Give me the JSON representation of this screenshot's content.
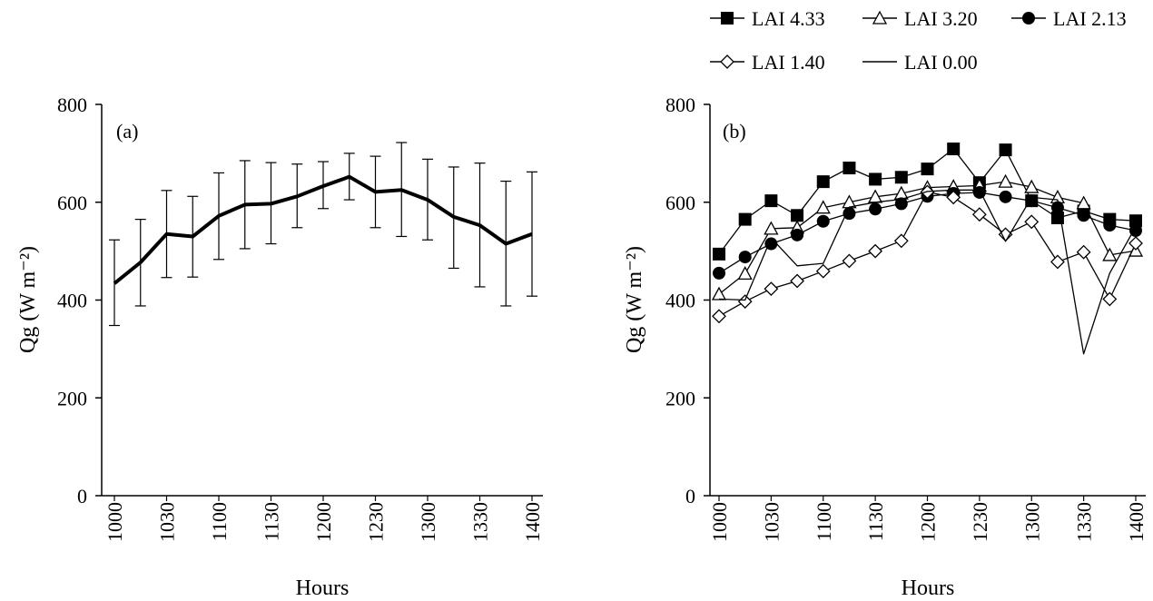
{
  "chart_data": [
    {
      "type": "line",
      "panel_label": "(a)",
      "xlabel": "Hours",
      "ylabel": "Qg (W m⁻²)",
      "ylim": [
        0,
        800
      ],
      "yticks": [
        0,
        200,
        400,
        600,
        800
      ],
      "categories": [
        "1000",
        "1015",
        "1030",
        "1045",
        "1100",
        "1115",
        "1130",
        "1145",
        "1200",
        "1215",
        "1230",
        "1245",
        "1300",
        "1315",
        "1330",
        "1345",
        "1400"
      ],
      "x_tick_labels": [
        "1000",
        "1030",
        "1100",
        "1130",
        "1200",
        "1230",
        "1300",
        "1330",
        "1400"
      ],
      "series": [
        {
          "values": [
            434,
            477,
            535,
            530,
            572,
            595,
            597,
            612,
            633,
            652,
            621,
            625,
            605,
            570,
            553,
            515,
            535
          ],
          "error_low": [
            348,
            388,
            446,
            447,
            483,
            505,
            515,
            548,
            587,
            605,
            548,
            530,
            523,
            465,
            427,
            388,
            408
          ],
          "error_high": [
            523,
            565,
            624,
            612,
            660,
            685,
            681,
            678,
            683,
            700,
            694,
            722,
            688,
            672,
            680,
            643,
            662
          ]
        }
      ]
    },
    {
      "type": "line",
      "panel_label": "(b)",
      "xlabel": "Hours",
      "ylabel": "Qg (W m⁻²)",
      "ylim": [
        0,
        800
      ],
      "yticks": [
        0,
        200,
        400,
        600,
        800
      ],
      "categories": [
        "1000",
        "1015",
        "1030",
        "1045",
        "1100",
        "1115",
        "1130",
        "1145",
        "1200",
        "1215",
        "1230",
        "1245",
        "1300",
        "1315",
        "1330",
        "1345",
        "1400"
      ],
      "x_tick_labels": [
        "1000",
        "1030",
        "1100",
        "1130",
        "1200",
        "1230",
        "1300",
        "1330",
        "1400"
      ],
      "legend_position": "top",
      "series": [
        {
          "name": "LAI 4.33",
          "marker": "square-filled",
          "values": [
            494,
            565,
            603,
            573,
            642,
            670,
            647,
            651,
            668,
            709,
            640,
            707,
            603,
            568,
            582,
            565,
            562
          ]
        },
        {
          "name": "LAI 3.20",
          "marker": "triangle-open",
          "values": [
            412,
            454,
            546,
            548,
            589,
            600,
            611,
            618,
            630,
            632,
            634,
            642,
            631,
            610,
            598,
            492,
            501
          ]
        },
        {
          "name": "LAI 2.13",
          "marker": "circle-filled",
          "values": [
            455,
            488,
            515,
            533,
            561,
            577,
            586,
            597,
            612,
            618,
            620,
            611,
            603,
            589,
            573,
            553,
            542
          ]
        },
        {
          "name": "LAI 1.40",
          "marker": "diamond-open",
          "values": [
            367,
            397,
            423,
            439,
            459,
            480,
            500,
            521,
            621,
            610,
            575,
            534,
            560,
            478,
            498,
            402,
            516
          ]
        },
        {
          "name": "LAI 0.00",
          "marker": "none",
          "values": [
            402,
            400,
            527,
            470,
            475,
            590,
            600,
            606,
            622,
            625,
            625,
            520,
            610,
            605,
            290,
            455,
            550
          ]
        }
      ]
    }
  ]
}
